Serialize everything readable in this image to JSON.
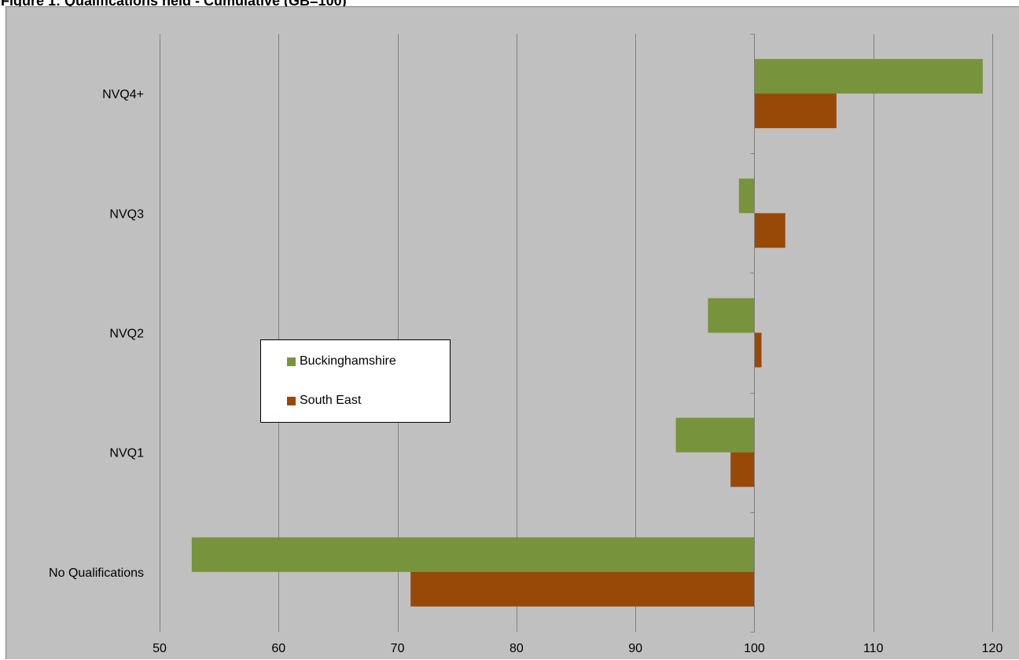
{
  "title": "Figure 1: Qualifications held - Cumulative (GB=100)",
  "colors": {
    "background": "#c0c0c0",
    "gridline": "#808080",
    "buckinghamshire": "#77933c",
    "south_east": "#984807"
  },
  "chart_data": {
    "type": "bar",
    "orientation": "horizontal",
    "categories": [
      "No Qualifications",
      "NVQ1",
      "NVQ2",
      "NVQ3",
      "NVQ4+"
    ],
    "baseline": 100,
    "series": [
      {
        "name": "Buckinghamshire",
        "color": "#77933c",
        "values": [
          52.7,
          93.4,
          96.1,
          98.7,
          119.2
        ]
      },
      {
        "name": "South East",
        "color": "#984807",
        "values": [
          71.1,
          98.0,
          100.6,
          102.6,
          106.9
        ]
      }
    ],
    "xlim": [
      50,
      120
    ],
    "xticks": [
      50,
      60,
      70,
      80,
      90,
      100,
      110,
      120
    ],
    "grid": true,
    "legend_position": "center-left"
  }
}
